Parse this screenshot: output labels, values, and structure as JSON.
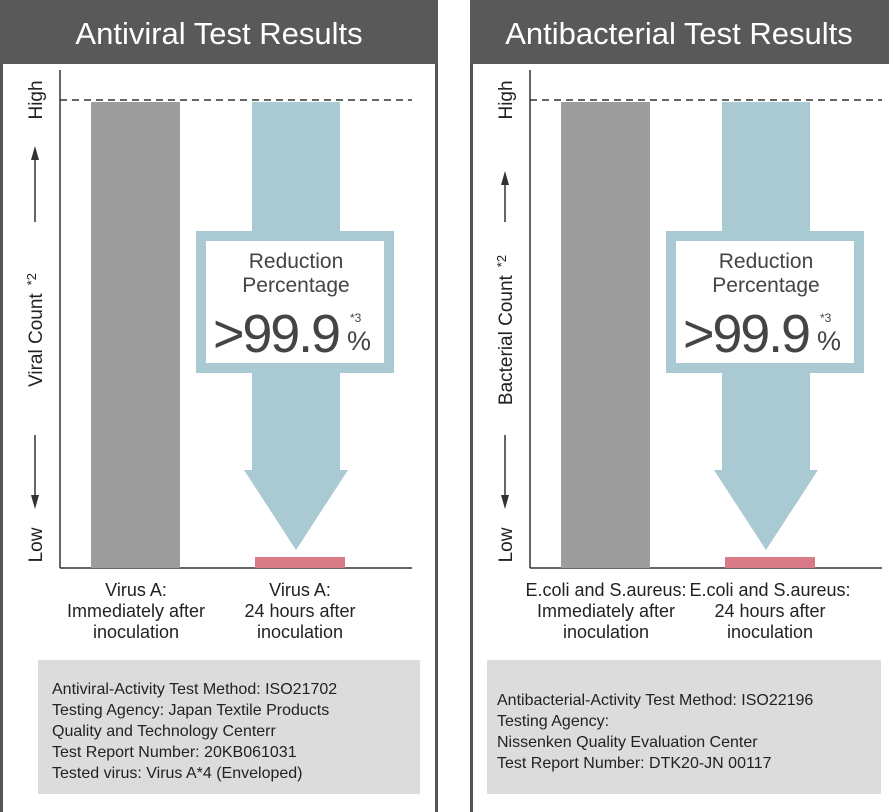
{
  "panels": [
    {
      "title": "Antiviral Test Results",
      "axis": {
        "high": "High",
        "low": "Low",
        "label": "Viral Count",
        "label_note": "*2"
      },
      "categories": [
        [
          "Virus A:",
          "Immediately after",
          "inoculation"
        ],
        [
          "Virus A:",
          "24 hours after",
          "inoculation"
        ]
      ],
      "badge": {
        "line1": "Reduction",
        "line2": "Percentage",
        "value": ">99.9",
        "note": "*3",
        "unit": "%"
      },
      "notes": [
        "Antiviral-Activity Test Method: ISO21702",
        "Testing Agency: Japan Textile Products",
        "Quality and Technology Centerr",
        "Test Report Number: 20KB061031",
        "Tested virus: Virus A*4 (Enveloped)"
      ]
    },
    {
      "title": "Antibacterial Test Results",
      "axis": {
        "high": "High",
        "low": "Low",
        "label": "Bacterial Count",
        "label_note": "*2"
      },
      "categories": [
        [
          "E.coli and S.aureus:",
          "Immediately after",
          "inoculation"
        ],
        [
          "E.coli and S.aureus:",
          "24 hours after",
          "inoculation"
        ]
      ],
      "badge": {
        "line1": "Reduction",
        "line2": "Percentage",
        "value": ">99.9",
        "note": "*3",
        "unit": "%"
      },
      "notes": [
        "Antibacterial-Activity Test Method: ISO22196",
        "Testing Agency:",
        "Nissenken Quality Evaluation Center",
        "Test Report Number: DTK20-JN 00117"
      ]
    }
  ]
}
